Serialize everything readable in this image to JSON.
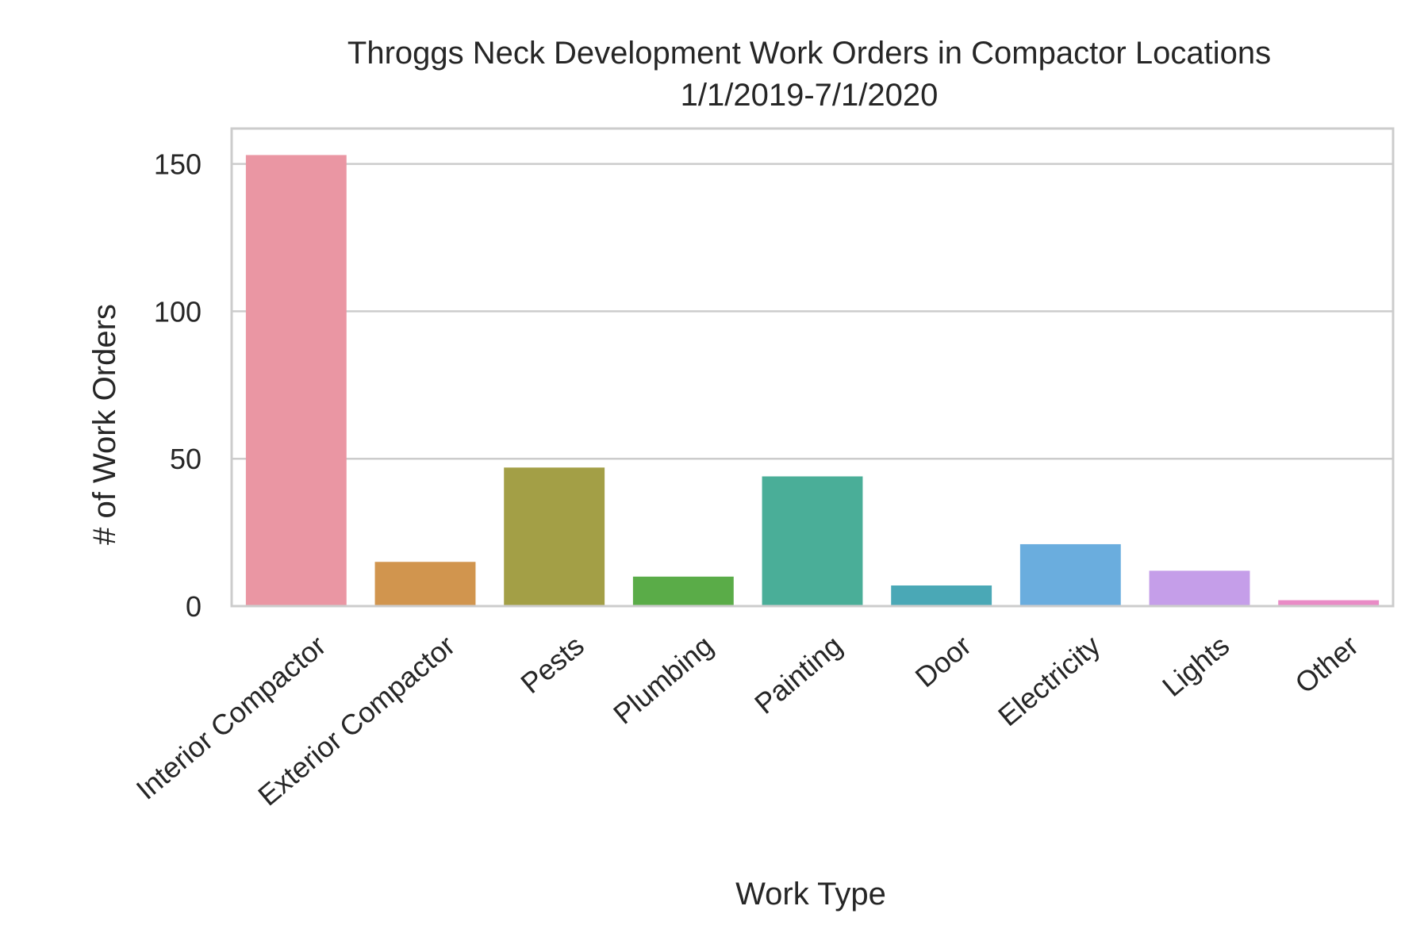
{
  "chart_data": {
    "type": "bar",
    "title": "Throggs Neck Development Work Orders in Compactor Locations",
    "subtitle": "1/1/2019-7/1/2020",
    "xlabel": "Work Type",
    "ylabel": "# of Work Orders",
    "categories": [
      "Interior Compactor",
      "Exterior Compactor",
      "Pests",
      "Plumbing",
      "Painting",
      "Door",
      "Electricity",
      "Lights",
      "Other"
    ],
    "values": [
      153,
      15,
      47,
      10,
      44,
      7,
      21,
      12,
      2
    ],
    "colors": [
      "#ea96a3",
      "#d1954e",
      "#a39f46",
      "#5aac48",
      "#4aae98",
      "#4aa8b6",
      "#6aadde",
      "#c59ee9",
      "#e98bc6"
    ],
    "ylim": [
      0,
      162
    ],
    "yticks": [
      0,
      50,
      100,
      150
    ],
    "grid": "horizontal",
    "legend": "none"
  }
}
